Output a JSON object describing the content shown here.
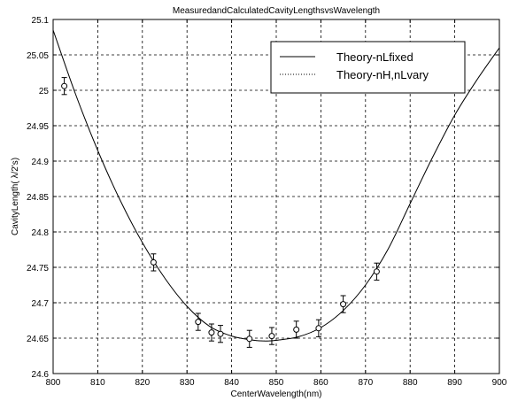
{
  "chart_data": {
    "type": "scatter",
    "title": "MeasuredandCalculatedCavityLengthsvsWavelength",
    "xlabel": "CenterWavelength(nm)",
    "ylabel": "CavityLength(   λ/2's)",
    "xlim": [
      800,
      900
    ],
    "ylim": [
      24.6,
      25.1
    ],
    "xticks": [
      "800",
      "810",
      "820",
      "830",
      "840",
      "850",
      "860",
      "870",
      "880",
      "890",
      "900"
    ],
    "yticks": [
      "24.6",
      "24.65",
      "24.7",
      "24.75",
      "24.8",
      "24.85",
      "24.9",
      "24.95",
      "25",
      "25.05",
      "25.1"
    ],
    "grid": true,
    "legend_position": "top-right",
    "series": [
      {
        "name": "Theory-nLfixed",
        "kind": "line",
        "x": [
          800,
          805,
          810,
          815,
          820,
          825,
          830,
          835,
          840,
          845,
          848,
          850,
          855,
          860,
          865,
          870,
          875,
          880,
          885,
          890,
          895,
          900
        ],
        "y": [
          25.085,
          24.995,
          24.915,
          24.845,
          24.785,
          24.735,
          24.695,
          24.667,
          24.653,
          24.647,
          24.646,
          24.647,
          24.652,
          24.665,
          24.689,
          24.725,
          24.775,
          24.84,
          24.905,
          24.965,
          25.015,
          25.06
        ]
      },
      {
        "name": "Theory-nH,nLvary",
        "kind": "dotted-line",
        "x": [
          800,
          805,
          810,
          815,
          820,
          825,
          830,
          835,
          840,
          845,
          848,
          850,
          855,
          860,
          865,
          870,
          875,
          880,
          885,
          890,
          895,
          900
        ],
        "y": [
          25.085,
          24.995,
          24.915,
          24.845,
          24.785,
          24.735,
          24.695,
          24.667,
          24.653,
          24.647,
          24.646,
          24.647,
          24.652,
          24.665,
          24.689,
          24.725,
          24.775,
          24.84,
          24.905,
          24.965,
          25.015,
          25.06
        ]
      },
      {
        "kind": "points-with-errorbars",
        "x": [
          802.5,
          822.5,
          832.5,
          835.5,
          837.5,
          844,
          849,
          854.5,
          859.5,
          865,
          872.5
        ],
        "y": [
          25.006,
          24.757,
          24.673,
          24.658,
          24.656,
          24.649,
          24.653,
          24.662,
          24.664,
          24.698,
          24.744
        ],
        "err": [
          0.012,
          0.012,
          0.012,
          0.012,
          0.012,
          0.012,
          0.012,
          0.012,
          0.012,
          0.012,
          0.012
        ]
      }
    ]
  }
}
